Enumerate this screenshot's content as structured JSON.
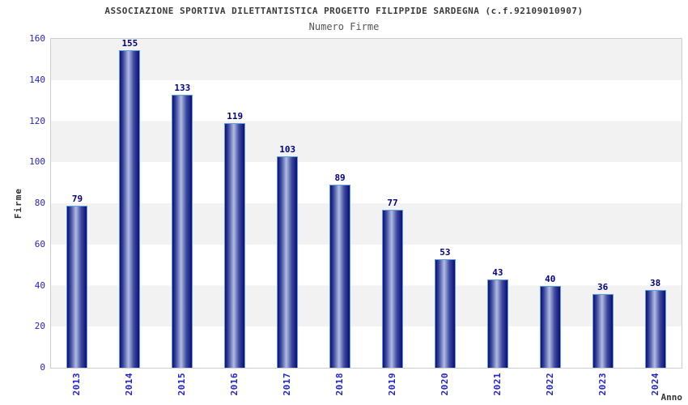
{
  "chart_data": {
    "type": "bar",
    "title": "ASSOCIAZIONE SPORTIVA DILETTANTISTICA PROGETTO FILIPPIDE SARDEGNA (c.f.92109010907)",
    "subtitle": "Numero Firme",
    "xlabel": "Anno",
    "ylabel": "Firme",
    "categories": [
      "2013",
      "2014",
      "2015",
      "2016",
      "2017",
      "2018",
      "2019",
      "2020",
      "2021",
      "2022",
      "2023",
      "2024"
    ],
    "values": [
      79,
      155,
      133,
      119,
      103,
      89,
      77,
      53,
      43,
      40,
      36,
      38
    ],
    "ylim": [
      0,
      160
    ],
    "yticks": [
      0,
      20,
      40,
      60,
      80,
      100,
      120,
      140,
      160
    ],
    "grid": "horizontal-bands-alternating",
    "legend": "none",
    "colors": {
      "title": "#3a3a3a",
      "subtitle": "#555555",
      "tick_label": "#2222cc",
      "value_label": "#000080",
      "axis_title": "#333333",
      "band_gray": "#f2f2f2",
      "band_white": "#ffffff",
      "plot_border": "#cccccc",
      "bar_border": "#5e9fe2",
      "bar_dark": "#0d0d78",
      "bar_mid": "#3c4a9e",
      "bar_highlight": "#b2bce2"
    }
  }
}
